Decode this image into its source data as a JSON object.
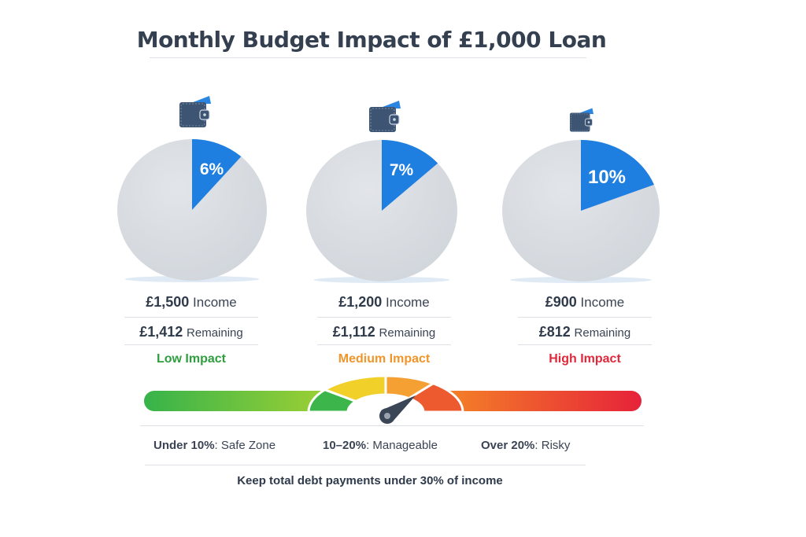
{
  "chart_data": {
    "type": "pie",
    "title": "Monthly Budget Impact of £1,000 Loan",
    "pies": [
      {
        "percent": 6,
        "label": "6%",
        "income_amount": "£1,500",
        "income_label": "Income",
        "remaining_amount": "£1,412",
        "remaining_label": "Remaining",
        "impact": "Low Impact",
        "impact_color": "#2e9e3e",
        "icon": "wallet-icon"
      },
      {
        "percent": 7,
        "label": "7%",
        "income_amount": "£1,200",
        "income_label": "Income",
        "remaining_amount": "£1,112",
        "remaining_label": "Remaining",
        "impact": "Medium Impact",
        "impact_color": "#f0952a",
        "icon": "wallet-icon"
      },
      {
        "percent": 10,
        "label": "10%",
        "income_amount": "£900",
        "income_label": "Income",
        "remaining_amount": "£812",
        "remaining_label": "Remaining",
        "impact": "High Impact",
        "impact_color": "#e0283a",
        "icon": "wallet-icon"
      }
    ],
    "colors": {
      "slice": "#1e7fe0",
      "rest": "#d5d9df"
    },
    "gauge": {
      "zones": [
        {
          "range": "Under 10%",
          "desc": "Safe Zone",
          "color": "#3cb54a"
        },
        {
          "range": "10–20%",
          "desc": "Manageable",
          "color": "#f2c21d"
        },
        {
          "range": "Over 20%",
          "desc": "Risky",
          "color": "#e8283a"
        }
      ]
    },
    "footer": "Keep total debt payments under 30% of income"
  }
}
